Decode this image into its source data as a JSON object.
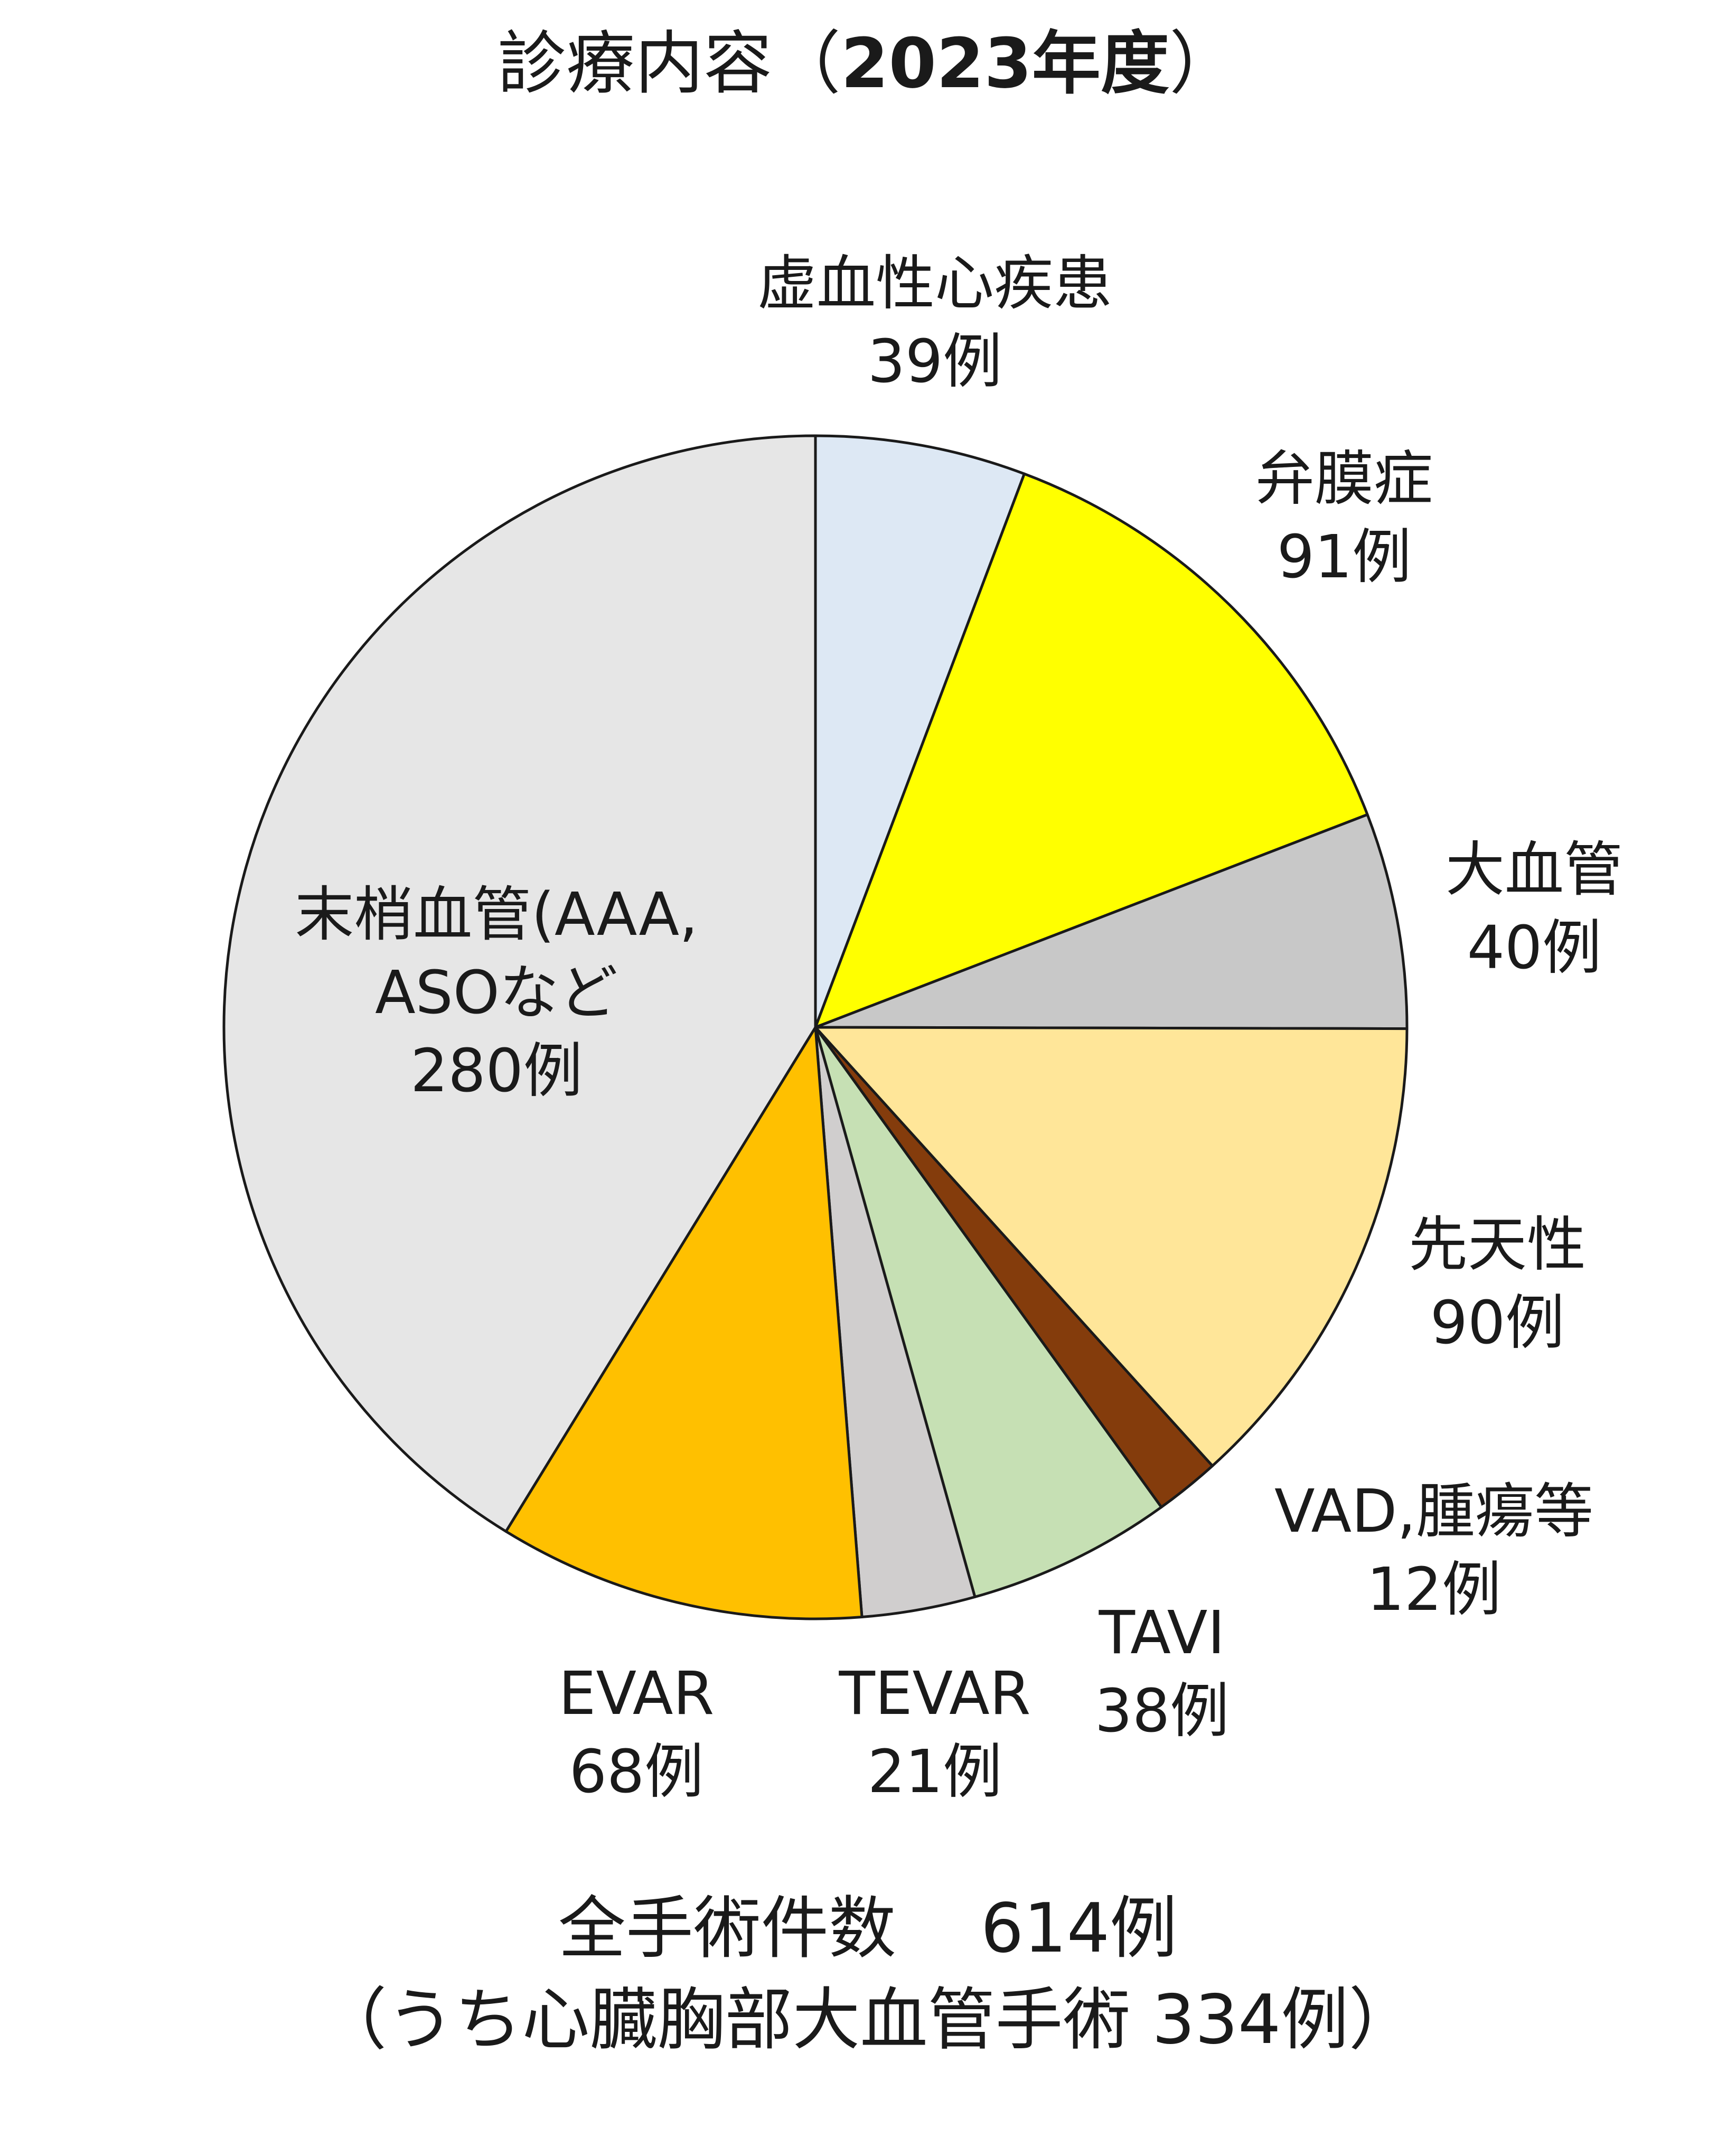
{
  "chart_data": {
    "type": "pie",
    "title_prefix": "診療内容（",
    "title_year": "2023年度",
    "title_suffix": "）",
    "slices": [
      {
        "label_lines": [
          "虚血性心疾患",
          "39例"
        ],
        "value": 39,
        "color": "#dde8f4"
      },
      {
        "label_lines": [
          "弁膜症",
          "91例"
        ],
        "value": 91,
        "color": "#ffff00"
      },
      {
        "label_lines": [
          "大血管",
          "40例"
        ],
        "value": 40,
        "color": "#c8c8c8"
      },
      {
        "label_lines": [
          "先天性",
          "90例"
        ],
        "value": 90,
        "color": "#ffe699"
      },
      {
        "label_lines": [
          "VAD,腫瘍等",
          "12例"
        ],
        "value": 12,
        "color": "#843c0c"
      },
      {
        "label_lines": [
          "TAVI",
          "38例"
        ],
        "value": 38,
        "color": "#c6e0b4"
      },
      {
        "label_lines": [
          "TEVAR",
          "21例"
        ],
        "value": 21,
        "color": "#d0cece"
      },
      {
        "label_lines": [
          "EVAR",
          "68例"
        ],
        "value": 68,
        "color": "#ffc000"
      },
      {
        "label_lines": [
          "末梢血管(AAA,",
          "ASOなど",
          "280例"
        ],
        "value": 280,
        "color": "#e6e6e6"
      }
    ],
    "footer": {
      "line1_label": "全手術件数",
      "line1_value": "614例",
      "line2": "（うち心臓胸部大血管手術 334例）"
    }
  }
}
